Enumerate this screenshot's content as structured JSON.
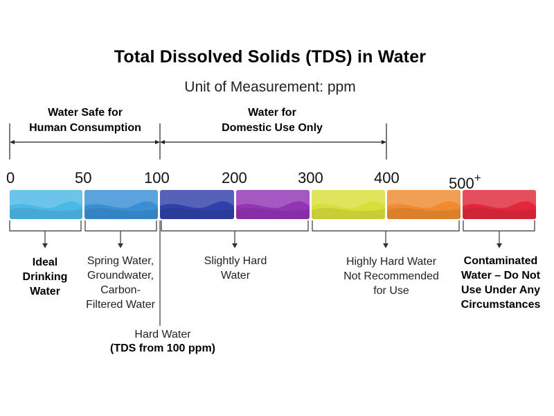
{
  "title": "Total Dissolved Solids (TDS) in Water",
  "subtitle": "Unit of Measurement: ppm",
  "ranges": {
    "safe": "Water Safe for\nHuman Consumption",
    "domestic": "Water for\nDomestic Use Only"
  },
  "ticks": [
    "0",
    "50",
    "100",
    "200",
    "300",
    "400",
    "500"
  ],
  "tick_plus": "+",
  "segment_colors": [
    "#4cb8e6",
    "#3a8fd4",
    "#2f40a8",
    "#9234b3",
    "#d9df3a",
    "#ee8a2f",
    "#e0283a"
  ],
  "descriptions": {
    "ideal": "Ideal\nDrinking\nWater",
    "spring": "Spring Water,\nGroundwater,\nCarbon-\nFiltered Water",
    "hard_water": "Hard Water",
    "hard_water_note": "(TDS from 100 ppm)",
    "slightly_hard": "Slightly Hard\nWater",
    "highly_hard": "Highly Hard Water\nNot Recommended\nfor Use",
    "contaminated": "Contaminated\nWater – Do Not\nUse Under Any\nCircumstances"
  }
}
